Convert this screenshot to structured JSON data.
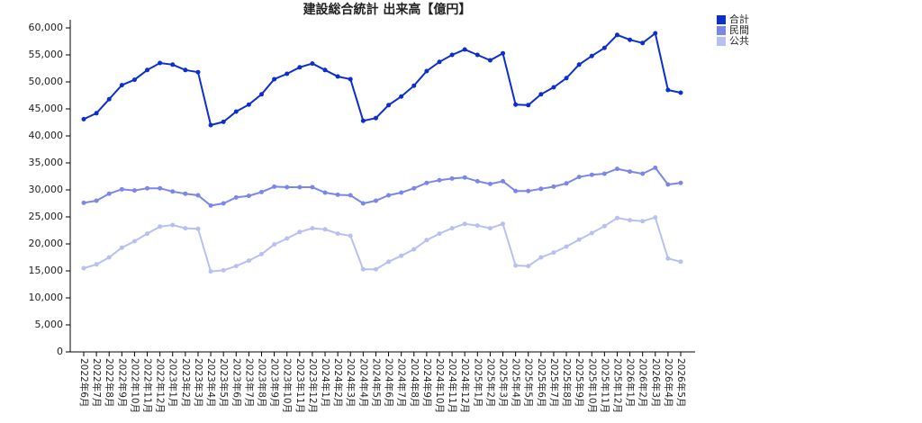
{
  "chart_data": {
    "type": "line",
    "title": "建設総合統計 出来高【億円】",
    "categories": [
      "2022年6月",
      "2022年7月",
      "2022年8月",
      "2022年9月",
      "2022年10月",
      "2022年11月",
      "2022年12月",
      "2023年1月",
      "2023年2月",
      "2023年3月",
      "2023年4月",
      "2023年5月",
      "2023年6月",
      "2023年7月",
      "2023年8月",
      "2023年9月",
      "2023年10月",
      "2023年11月",
      "2023年12月",
      "2024年1月",
      "2024年2月",
      "2024年3月",
      "2024年4月",
      "2024年5月",
      "2024年6月",
      "2024年7月",
      "2024年8月",
      "2024年9月",
      "2024年10月",
      "2024年11月",
      "2024年12月",
      "2025年1月",
      "2025年2月",
      "2025年3月",
      "2025年4月",
      "2025年5月",
      "2025年6月",
      "2025年7月",
      "2025年8月",
      "2025年9月",
      "2025年10月",
      "2025年11月",
      "2025年12月",
      "2026年1月",
      "2026年2月",
      "2026年3月",
      "2026年4月",
      "2026年5月"
    ],
    "series": [
      {
        "name": "合計",
        "color": "#0a2ecf",
        "values": [
          43100,
          44200,
          46800,
          49400,
          50400,
          52200,
          53500,
          53200,
          52200,
          51800,
          42000,
          42600,
          44500,
          45800,
          47700,
          50500,
          51500,
          52700,
          53400,
          52200,
          51000,
          50500,
          42800,
          43300,
          45700,
          47300,
          49300,
          52000,
          53700,
          55000,
          56000,
          55000,
          54000,
          55300,
          45800,
          45700,
          47700,
          49000,
          50700,
          53200,
          54800,
          56300,
          58700,
          57800,
          57200,
          59000,
          48500,
          48000
        ]
      },
      {
        "name": "民間",
        "color": "#7a87e8",
        "values": [
          27600,
          28000,
          29300,
          30100,
          29900,
          30300,
          30300,
          29700,
          29300,
          29000,
          27100,
          27500,
          28600,
          28900,
          29600,
          30600,
          30500,
          30500,
          30500,
          29500,
          29100,
          29000,
          27500,
          28000,
          29000,
          29500,
          30300,
          31300,
          31800,
          32100,
          32300,
          31600,
          31100,
          31600,
          29800,
          29800,
          30200,
          30600,
          31200,
          32400,
          32800,
          33000,
          33900,
          33400,
          33000,
          34100,
          31000,
          31300
        ]
      },
      {
        "name": "公共",
        "color": "#b8c0f2",
        "values": [
          15500,
          16200,
          17500,
          19300,
          20500,
          21900,
          23200,
          23500,
          22900,
          22800,
          14900,
          15100,
          15900,
          16900,
          18100,
          19900,
          21000,
          22200,
          22900,
          22700,
          21900,
          21500,
          15300,
          15300,
          16700,
          17800,
          19000,
          20700,
          21900,
          22900,
          23700,
          23400,
          22900,
          23700,
          16000,
          15900,
          17500,
          18400,
          19500,
          20800,
          22000,
          23300,
          24800,
          24400,
          24200,
          24900,
          17300,
          16700
        ]
      }
    ],
    "ylim": [
      0,
      61500
    ],
    "yticks": [
      0,
      {
        "value": 5000,
        "label": "5,000"
      },
      {
        "value": 10000,
        "label": "10,000"
      },
      {
        "value": 15000,
        "label": "15,000"
      },
      {
        "value": 20000,
        "label": "20,000"
      },
      {
        "value": 25000,
        "label": "25,000"
      },
      {
        "value": 30000,
        "label": "30,000"
      },
      {
        "value": 35000,
        "label": "35,000"
      },
      {
        "value": 40000,
        "label": "40,000"
      },
      {
        "value": 45000,
        "label": "45,000"
      },
      {
        "value": 50000,
        "label": "50,000"
      },
      {
        "value": 55000,
        "label": "55,000"
      },
      {
        "value": 60000,
        "label": "60,000"
      }
    ],
    "grid": false,
    "legend": "top-right"
  }
}
